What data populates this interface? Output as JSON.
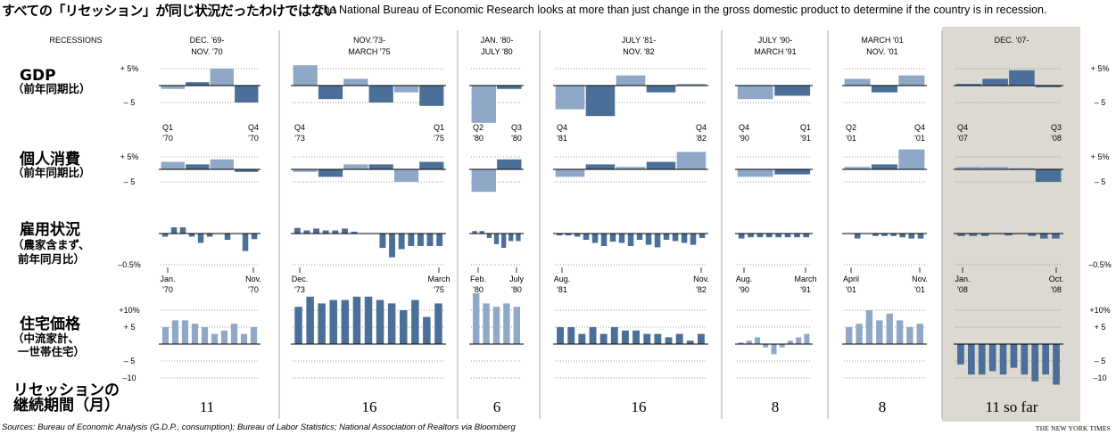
{
  "title_ja": "すべての「リセッション」が同じ状況だったわけではない",
  "title_en": "The National Bureau of Economic Research looks at more than just change in the gross domestic product to determine if the country is in recession.",
  "source": "Sources: Bureau of Economic Analysis (G.D.P., consumption); Bureau of Labor Statistics; National Association of Realtors via Bloomberg",
  "credit": "THE NEW YORK TIMES",
  "chart_data": {
    "type": "bar",
    "recessions_header": "RECESSIONS",
    "colors": {
      "light": "#8fa8c8",
      "dark": "#4a6f98",
      "highlight_bg": "#dcd9d3",
      "divider": "#aaaaaa"
    },
    "rows": [
      {
        "key": "gdp",
        "label_main": "GDP",
        "label_sub": [
          "（前年同期比）"
        ],
        "ticks_left": [
          "+ 5%",
          "– 5"
        ],
        "ticks_right": [
          "+ 5%",
          "– 5"
        ]
      },
      {
        "key": "consumption",
        "label_main": "個人消費",
        "label_sub": [
          "（前年同期比）"
        ],
        "ticks_left": [
          "+ 5%",
          "– 5"
        ],
        "ticks_right": [
          "+ 5%",
          "– 5"
        ]
      },
      {
        "key": "employment",
        "label_main": "雇用状況",
        "label_sub": [
          "（農家含まず、",
          "前年同月比）"
        ],
        "ticks_left": [
          "–0.5%"
        ],
        "ticks_right": [
          "–0.5%"
        ]
      },
      {
        "key": "housing",
        "label_main": "住宅価格",
        "label_sub": [
          "（中流家計、",
          "一世帯住宅）"
        ],
        "ticks_left": [
          "+10%",
          "+ 5",
          "– 5",
          "–10"
        ],
        "ticks_right": [
          "+10%",
          "+ 5",
          "– 5",
          "–10"
        ]
      },
      {
        "key": "duration",
        "label_main": "リセッションの",
        "label_sub": [
          "継続期間（月）"
        ]
      }
    ],
    "recessions": [
      {
        "header": [
          "DEC. '69-",
          "NOV. '70"
        ],
        "duration": "11",
        "gdp": [
          -1,
          1,
          5,
          -5
        ],
        "gdp_labels": [
          [
            "Q1",
            "'70"
          ],
          [
            "Q4",
            "'70"
          ]
        ],
        "consumption": [
          3,
          2,
          4,
          -1
        ],
        "employment": [
          -0.05,
          0.1,
          0.1,
          -0.05,
          -0.15,
          -0.05,
          0,
          -0.1,
          0,
          -0.28,
          -0.09
        ],
        "employment_labels": [
          [
            "Jan.",
            "'70"
          ],
          [
            "Nov.",
            "'70"
          ]
        ],
        "housing": [
          5,
          7,
          7,
          6,
          5,
          3,
          4,
          6,
          3,
          5
        ]
      },
      {
        "header": [
          "NOV.'73-",
          "MARCH '75"
        ],
        "duration": "16",
        "gdp": [
          6,
          -4,
          2,
          -5,
          -2,
          -6
        ],
        "gdp_labels": [
          [
            "Q4",
            "'73"
          ],
          [
            "Q1",
            "'75"
          ]
        ],
        "consumption": [
          -1,
          -3,
          2,
          2,
          -5,
          3
        ],
        "employment": [
          0.09,
          0.05,
          0.08,
          0.05,
          0.05,
          0.08,
          0.03,
          0,
          0,
          -0.23,
          -0.38,
          -0.25,
          -0.2,
          -0.2,
          -0.2,
          -0.2
        ],
        "employment_labels": [
          [
            "Dec.",
            "'73"
          ],
          [
            "March",
            "'75"
          ]
        ],
        "housing": [
          11,
          14,
          12,
          13,
          13,
          14,
          14,
          13,
          12,
          10,
          13,
          8,
          12
        ]
      },
      {
        "header": [
          "JAN. '80-",
          "JULY '80"
        ],
        "duration": "6",
        "gdp": [
          -11,
          -1
        ],
        "gdp_labels": [
          [
            "Q2",
            "'80"
          ],
          [
            "Q3",
            "'80"
          ]
        ],
        "consumption": [
          -9,
          4
        ],
        "employment": [
          0.04,
          0.04,
          -0.07,
          -0.17,
          -0.23,
          -0.12,
          -0.12
        ],
        "employment_labels": [
          [
            "Feb.",
            "'80"
          ],
          [
            "July",
            "'80"
          ]
        ],
        "housing": [
          15,
          12,
          11,
          12,
          11
        ]
      },
      {
        "header": [
          "JULY '81-",
          "NOV. '82"
        ],
        "duration": "16",
        "gdp": [
          -7,
          -9,
          3,
          -2,
          0.5
        ],
        "gdp_labels": [
          [
            "Q4",
            "'81"
          ],
          [
            "Q4",
            "'82"
          ]
        ],
        "consumption": [
          -3,
          2,
          1,
          3,
          7
        ],
        "employment": [
          -0.03,
          -0.03,
          -0.05,
          -0.1,
          -0.15,
          -0.2,
          -0.13,
          -0.15,
          -0.2,
          -0.1,
          -0.18,
          -0.22,
          -0.1,
          -0.12,
          -0.15,
          -0.18,
          -0.07
        ],
        "employment_labels": [
          [
            "Aug.",
            "'81"
          ],
          [
            "Nov.",
            "'82"
          ]
        ],
        "housing": [
          5,
          5,
          3,
          5,
          3,
          5,
          4,
          4,
          3,
          3,
          2,
          3,
          1,
          3
        ]
      },
      {
        "header": [
          "JULY '90-",
          "MARCH '91"
        ],
        "duration": "8",
        "gdp": [
          -4,
          -3
        ],
        "gdp_labels": [
          [
            "Q4",
            "'90"
          ],
          [
            "Q1",
            "'91"
          ]
        ],
        "consumption": [
          -3,
          -2
        ],
        "employment": [
          -0.08,
          -0.06,
          -0.06,
          -0.06,
          -0.06,
          -0.06,
          -0.06,
          -0.06
        ],
        "employment_labels": [
          [
            "Aug.",
            "'90"
          ],
          [
            "March",
            "'91"
          ]
        ],
        "housing": [
          0.5,
          1,
          2,
          -1,
          -3,
          -1,
          1,
          2,
          3
        ]
      },
      {
        "header": [
          "MARCH '01",
          "NOV. '01"
        ],
        "duration": "8",
        "gdp": [
          2,
          -2,
          3
        ],
        "gdp_labels": [
          [
            "Q2",
            "'01"
          ],
          [
            "Q4",
            "'01"
          ]
        ],
        "consumption": [
          1,
          2,
          8
        ],
        "employment": [
          0,
          -0.08,
          0,
          -0.04,
          -0.04,
          -0.04,
          -0.06,
          -0.08,
          -0.08
        ],
        "employment_labels": [
          [
            "April",
            "'01"
          ],
          [
            "Nov.",
            "'01"
          ]
        ],
        "housing": [
          5,
          6,
          10,
          7,
          9,
          7,
          5,
          6
        ]
      },
      {
        "header": [
          "DEC. '07-",
          ""
        ],
        "duration": "11 so far",
        "highlight": true,
        "gdp": [
          0.5,
          2,
          4.5,
          -0.5
        ],
        "gdp_labels": [
          [
            "Q4",
            "'07"
          ],
          [
            "Q3",
            "'08"
          ]
        ],
        "consumption": [
          1,
          1,
          0.5,
          -5
        ],
        "employment": [
          -0.04,
          -0.04,
          -0.04,
          0,
          -0.03,
          0,
          -0.04,
          -0.08,
          -0.08
        ],
        "employment_labels": [
          [
            "Jan.",
            "'08"
          ],
          [
            "Oct.",
            "'08"
          ]
        ],
        "housing": [
          -6,
          -9,
          -9,
          -8,
          -9,
          -7,
          -9,
          -11,
          -9,
          -12
        ]
      }
    ]
  }
}
